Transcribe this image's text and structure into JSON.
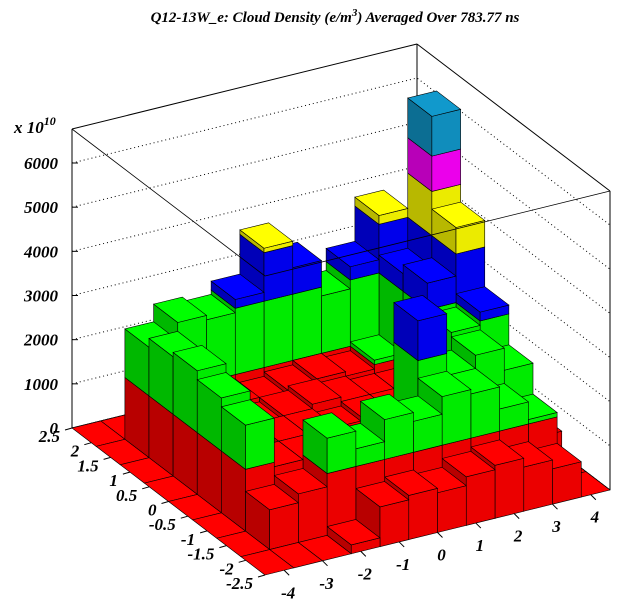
{
  "chart_data": {
    "type": "lego",
    "title": "Q12-13W_e: Cloud Density (e/m",
    "title_superscript": "3",
    "title_end": ") Averaged Over 783.77 ns",
    "z_multiplier": "x 10",
    "z_exponent": "10",
    "xbins": [
      -4.5,
      -3.75,
      -3,
      -2.25,
      -1.5,
      -0.75,
      0,
      0.75,
      1.5,
      2.25,
      3,
      3.75,
      4.5
    ],
    "ybins": [
      -2.5,
      -1.875,
      -1.25,
      -0.625,
      0,
      0.625,
      1.25,
      1.875,
      2.5
    ],
    "values": [
      [
        0,
        0,
        0,
        200,
        900,
        1000,
        900,
        1100,
        1200,
        1000,
        800,
        0
      ],
      [
        0,
        900,
        1100,
        2200,
        1800,
        2300,
        2100,
        2500,
        2400,
        1900,
        1500,
        0
      ],
      [
        0,
        2400,
        1300,
        1300,
        1200,
        1300,
        1200,
        3800,
        2400,
        2700,
        2200,
        500
      ],
      [
        0,
        2600,
        1200,
        1300,
        1300,
        1200,
        1300,
        1300,
        1200,
        2800,
        3100,
        800
      ],
      [
        0,
        2800,
        1300,
        1200,
        1300,
        1400,
        1300,
        1200,
        1200,
        3500,
        4600,
        1000
      ],
      [
        0,
        2700,
        1300,
        1300,
        1200,
        1300,
        1400,
        1300,
        1500,
        3300,
        6700,
        800
      ],
      [
        0,
        2500,
        2900,
        2800,
        3100,
        4100,
        3500,
        2700,
        3200,
        4200,
        3200,
        0
      ],
      [
        0,
        0,
        0,
        0,
        0,
        0,
        0,
        0,
        0,
        0,
        0,
        0
      ]
    ],
    "color_levels": [
      {
        "from": 0,
        "color": "#ff0000"
      },
      {
        "from": 1400,
        "color": "#00ff00"
      },
      {
        "from": 2900,
        "color": "#0000ff"
      },
      {
        "from": 4000,
        "color": "#ffff00"
      },
      {
        "from": 5000,
        "color": "#ff00ff"
      },
      {
        "from": 5800,
        "color": "#1199cc"
      }
    ],
    "xlim": [
      -4.5,
      4.5
    ],
    "ylim": [
      -2.5,
      2.5
    ],
    "zlim": [
      0,
      6770
    ],
    "xticks": [
      -4,
      -3,
      -2,
      -1,
      0,
      1,
      2,
      3,
      4
    ],
    "yticks": [
      -2.5,
      -2,
      -1.5,
      -1,
      -0.5,
      0,
      0.5,
      1,
      1.5,
      2,
      2.5
    ],
    "zticks": [
      0,
      1000,
      2000,
      3000,
      4000,
      5000,
      6000
    ],
    "grid": true
  }
}
